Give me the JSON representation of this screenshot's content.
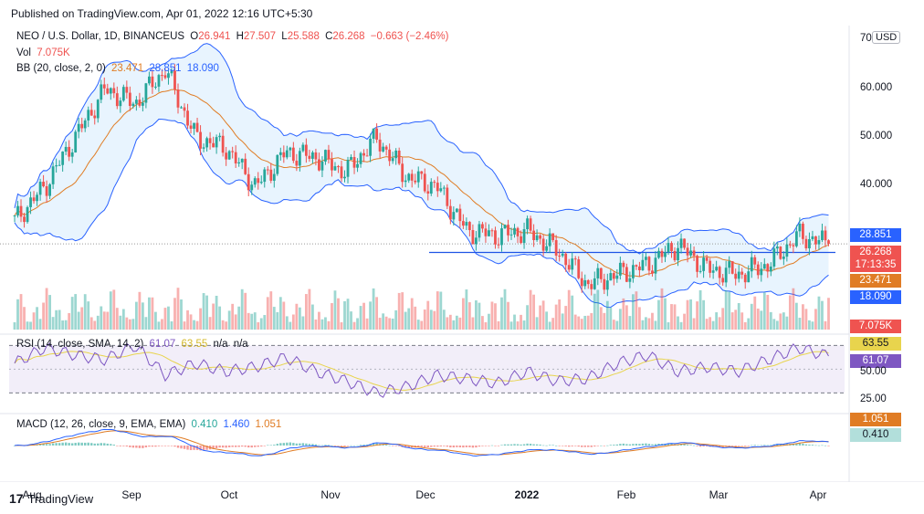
{
  "header": {
    "published": "Published on TradingView.com, Apr 01, 2022 12:16 UTC+5:30"
  },
  "legend": {
    "symbol": "NEO / U.S. Dollar, 1D, BINANCEUS",
    "o_label": "O",
    "o": "26.941",
    "h_label": "H",
    "h": "27.507",
    "l_label": "L",
    "l": "25.588",
    "c_label": "C",
    "c": "26.268",
    "change": "−0.663 (−2.46%)",
    "vol_label": "Vol",
    "vol": "7.075K",
    "bb_label": "BB (20, close, 2, 0)",
    "bb_basis": "23.471",
    "bb_upper": "28.851",
    "bb_lower": "18.090",
    "rsi_label": "RSI (14, close, SMA, 14, 2)",
    "rsi": "61.07",
    "rsi_ma": "63.55",
    "rsi_na1": "n/a",
    "rsi_na2": "n/a",
    "macd_label": "MACD (12, 26, close, 9, EMA, EMA)",
    "macd_hist": "0.410",
    "macd": "1.460",
    "macd_signal": "1.051"
  },
  "price_axis": {
    "currency": "USD",
    "ticks": [
      "70.000",
      "60.000",
      "50.000",
      "40.000"
    ],
    "labels": {
      "bb_upper": "28.851",
      "close": "26.268",
      "countdown": "17:13:35",
      "bb_basis": "23.471",
      "bb_lower": "18.090",
      "volume": "7.075K",
      "rsi_ma": "63.55",
      "rsi": "61.07",
      "rsi_tick_50": "50.00",
      "rsi_tick_25": "25.00",
      "macd_signal": "1.051",
      "macd_hist": "0.410"
    }
  },
  "time_axis": {
    "labels": [
      "Aug",
      "Sep",
      "Oct",
      "Nov",
      "Dec",
      "2022",
      "Feb",
      "Mar",
      "Apr"
    ]
  },
  "footer": {
    "brand": "TradingView",
    "logo": "17"
  },
  "colors": {
    "up": "#26a69a",
    "down": "#ef5350",
    "bb_band": "#2962ff",
    "bb_basis": "#e07c24",
    "rsi": "#7e57c2",
    "rsi_ma": "#e8d44d",
    "macd": "#2962ff",
    "signal": "#e07c24"
  },
  "chart_data": [
    {
      "type": "candlestick",
      "title": "NEO / U.S. Dollar, 1D, BINANCEUS",
      "x": [
        "Jul 22",
        "Aug 1",
        "Aug 10",
        "Aug 20",
        "Aug 30",
        "Sep 7",
        "Sep 15",
        "Sep 25",
        "Oct 5",
        "Oct 15",
        "Oct 25",
        "Nov 3",
        "Nov 12",
        "Nov 22",
        "Dec 2",
        "Dec 12",
        "Dec 22",
        "Jan 1",
        "Jan 10",
        "Jan 20",
        "Jan 30",
        "Feb 9",
        "Feb 18",
        "Feb 28",
        "Mar 9",
        "Mar 18",
        "Mar 27",
        "Apr 1"
      ],
      "close": [
        31,
        38,
        48,
        58,
        55,
        62,
        48,
        46,
        38,
        45,
        44,
        41,
        48,
        40,
        38,
        29,
        28,
        29,
        25,
        18,
        20,
        22,
        26,
        21,
        20,
        22,
        28,
        26.268
      ],
      "bb_upper_last": 28.851,
      "bb_basis_last": 23.471,
      "bb_lower_last": 18.09,
      "ylim": [
        13,
        71
      ]
    },
    {
      "type": "bar",
      "title": "Vol",
      "last_value": "7.075K"
    },
    {
      "type": "line",
      "title": "RSI (14, close, SMA, 14, 2)",
      "rsi": [
        55,
        68,
        62,
        58,
        70,
        45,
        55,
        48,
        52,
        60,
        48,
        40,
        30,
        35,
        45,
        42,
        38,
        48,
        40,
        42,
        55,
        62,
        48,
        52,
        48,
        58,
        68,
        61.07
      ],
      "rsi_ma_last": 63.55,
      "ylim": [
        18,
        78
      ],
      "bands": [
        70,
        30
      ]
    },
    {
      "type": "line",
      "title": "MACD (12, 26, close, 9, EMA, EMA)",
      "macd_last": 1.46,
      "signal_last": 1.051,
      "hist_last": 0.41
    }
  ]
}
